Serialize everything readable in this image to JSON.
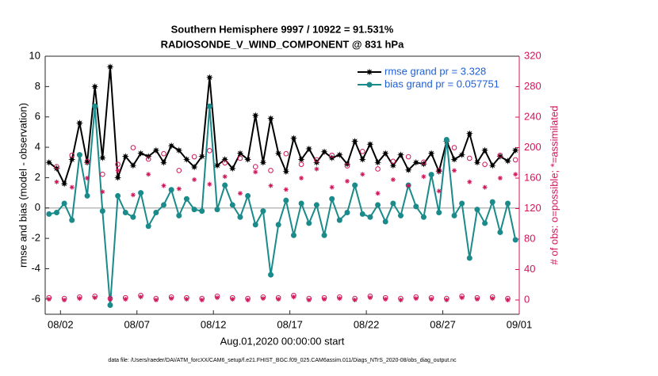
{
  "chart_data": {
    "type": "line",
    "title": "Southern Hemisphere 9997 / 10922 = 91.531%",
    "subtitle": "RADIOSONDE_V_WIND_COMPONENT @ 831 hPa",
    "xlabel": "Aug.01,2020 00:00:00 start",
    "ylabel": "rmse and bias (model - observation)",
    "y2label": "# of obs: o=possible; *=assimilated",
    "footnote": "data file: /Users/raeder/DAI/ATM_forcXX/CAM6_setup/f.e21.FHIST_BGC.f09_025.CAM6assim.011/Diags_NTrS_2020-08/obs_diag_output.nc",
    "x": [
      0.25,
      0.75,
      1.25,
      1.75,
      2.25,
      2.75,
      3.25,
      3.75,
      4.25,
      4.75,
      5.25,
      5.75,
      6.25,
      6.75,
      7.25,
      7.75,
      8.25,
      8.75,
      9.25,
      9.75,
      10.25,
      10.75,
      11.25,
      11.75,
      12.25,
      12.75,
      13.25,
      13.75,
      14.25,
      14.75,
      15.25,
      15.75,
      16.25,
      16.75,
      17.25,
      17.75,
      18.25,
      18.75,
      19.25,
      19.75,
      20.25,
      20.75,
      21.25,
      21.75,
      22.25,
      22.75,
      23.25,
      23.75,
      24.25,
      24.75,
      25.25,
      25.75,
      26.25,
      26.75,
      27.25,
      27.75,
      28.25,
      28.75,
      29.25,
      29.75,
      30.25,
      30.75
    ],
    "xlim": [
      0,
      31
    ],
    "xticks": [
      {
        "value": 1,
        "label": "08/02"
      },
      {
        "value": 6,
        "label": "08/07"
      },
      {
        "value": 11,
        "label": "08/12"
      },
      {
        "value": 16,
        "label": "08/17"
      },
      {
        "value": 21,
        "label": "08/22"
      },
      {
        "value": 26,
        "label": "08/27"
      },
      {
        "value": 31,
        "label": "09/01"
      }
    ],
    "ylim": [
      -7,
      10
    ],
    "yticks": [
      -6,
      -4,
      -2,
      0,
      2,
      4,
      6,
      8,
      10
    ],
    "y2lim": [
      -18.7,
      320
    ],
    "y2ticks": [
      0,
      40,
      80,
      120,
      160,
      200,
      240,
      280,
      320
    ],
    "y2color": "#d0155a",
    "zero_line_color": "#bbbbbb",
    "legend": "upper right",
    "series": [
      {
        "name": "rmse grand pr = 3.328",
        "color": "#000000",
        "marker": "star",
        "values": [
          3.0,
          2.6,
          1.6,
          3.2,
          5.6,
          3.0,
          8.0,
          3.3,
          9.3,
          2.0,
          3.4,
          2.8,
          3.6,
          3.4,
          3.8,
          3.0,
          4.1,
          3.8,
          3.2,
          2.7,
          3.4,
          8.6,
          2.8,
          3.2,
          2.6,
          3.6,
          3.2,
          6.1,
          3.0,
          5.9,
          3.6,
          2.4,
          4.6,
          3.2,
          3.9,
          3.0,
          3.7,
          3.3,
          3.5,
          2.9,
          4.4,
          3.2,
          4.2,
          3.0,
          3.6,
          2.8,
          3.5,
          2.5,
          3.0,
          2.9,
          3.6,
          2.4,
          4.4,
          3.2,
          3.5,
          4.9,
          3.0,
          3.8,
          2.8,
          3.4,
          3.1,
          3.8
        ]
      },
      {
        "name": "bias grand pr = 0.057751",
        "color": "#1a8a8a",
        "marker": "dot",
        "values": [
          -0.4,
          -0.3,
          0.3,
          -0.8,
          3.5,
          0.8,
          6.7,
          -0.2,
          -6.4,
          0.8,
          -0.3,
          -0.6,
          1.0,
          -1.2,
          -0.3,
          0.2,
          1.2,
          -0.5,
          0.6,
          -0.1,
          -0.2,
          6.7,
          -0.1,
          1.5,
          0.2,
          -0.6,
          0.8,
          -1.1,
          -0.2,
          -4.4,
          -1.1,
          0.5,
          -1.8,
          0.3,
          -1.0,
          0.2,
          -1.8,
          0.6,
          -0.8,
          -0.3,
          1.5,
          -0.4,
          -0.6,
          0.2,
          -0.9,
          0.3,
          -0.5,
          1.5,
          0.1,
          -0.6,
          2.2,
          -0.3,
          4.5,
          -0.5,
          0.3,
          -3.3,
          -0.1,
          -1.0,
          0.4,
          -1.6,
          0.3,
          -2.1
        ]
      },
      {
        "color": "#d0155a",
        "marker": "circle",
        "axis": "y2",
        "values": [
          3,
          175,
          2,
          190,
          4,
          182,
          5,
          165,
          2,
          178,
          3,
          200,
          6,
          185,
          2,
          192,
          4,
          170,
          3,
          188,
          2,
          196,
          5,
          180,
          3,
          186,
          2,
          175,
          4,
          170,
          3,
          192,
          6,
          178,
          2,
          184,
          3,
          190,
          4,
          176,
          2,
          195,
          5,
          172,
          3,
          182,
          2,
          188,
          4,
          181,
          3,
          170,
          2,
          200,
          5,
          186,
          3,
          178,
          4,
          190,
          2,
          184
        ]
      },
      {
        "color": "#d0155a",
        "marker": "asterisk",
        "axis": "y2",
        "values": [
          1,
          155,
          0,
          148,
          2,
          160,
          3,
          142,
          1,
          170,
          1,
          138,
          4,
          165,
          0,
          150,
          2,
          146,
          1,
          158,
          0,
          152,
          3,
          162,
          1,
          140,
          0,
          168,
          2,
          150,
          1,
          145,
          4,
          160,
          0,
          172,
          1,
          148,
          2,
          156,
          0,
          165,
          3,
          140,
          1,
          158,
          0,
          150,
          2,
          162,
          1,
          143,
          0,
          170,
          3,
          155,
          1,
          148,
          2,
          160,
          0,
          165
        ]
      }
    ]
  }
}
